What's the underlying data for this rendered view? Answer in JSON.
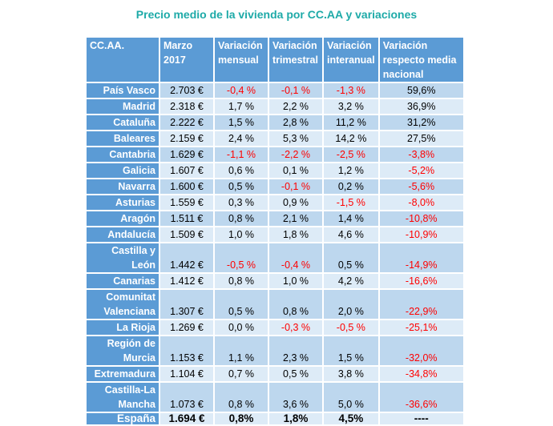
{
  "title": "Precio medio de la vivienda por CC.AA y variaciones",
  "colors": {
    "header_bg": "#5B9BD5",
    "row_dark": "#BDD7EE",
    "row_light": "#DDEBF7",
    "negative": "#FF0000",
    "title": "#1EAAA8"
  },
  "headers": [
    "CC.AA.",
    "Marzo 2017",
    "Variación mensual",
    "Variación trimestral",
    "Variación interanual",
    "Variación respecto media nacional"
  ],
  "rows": [
    [
      "País Vasco",
      "2.703 €",
      "-0,4 %",
      "-0,1 %",
      "-1,3 %",
      "59,6%"
    ],
    [
      "Madrid",
      "2.318 €",
      "1,7 %",
      "2,2 %",
      "3,2 %",
      "36,9%"
    ],
    [
      "Cataluña",
      "2.222 €",
      "1,5 %",
      "2,8 %",
      "11,2 %",
      "31,2%"
    ],
    [
      "Baleares",
      "2.159 €",
      "2,4 %",
      "5,3 %",
      "14,2 %",
      "27,5%"
    ],
    [
      "Cantabria",
      "1.629 €",
      "-1,1 %",
      "-2,2 %",
      "-2,5 %",
      "-3,8%"
    ],
    [
      "Galicia",
      "1.607 €",
      "0,6 %",
      "0,1 %",
      "1,2 %",
      "-5,2%"
    ],
    [
      "Navarra",
      "1.600 €",
      "0,5 %",
      "-0,1 %",
      "0,2 %",
      "-5,6%"
    ],
    [
      "Asturias",
      "1.559 €",
      "0,3 %",
      "0,9 %",
      "-1,5 %",
      "-8,0%"
    ],
    [
      "Aragón",
      "1.511 €",
      "0,8 %",
      "2,1 %",
      "1,4 %",
      "-10,8%"
    ],
    [
      "Andalucía",
      "1.509 €",
      "1,0 %",
      "1,8 %",
      "4,6 %",
      "-10,9%"
    ],
    [
      "Castilla y León",
      "1.442 €",
      "-0,5 %",
      "-0,4 %",
      "0,5 %",
      "-14,9%"
    ],
    [
      "Canarias",
      "1.412 €",
      "0,8 %",
      "1,0 %",
      "4,2 %",
      "-16,6%"
    ],
    [
      "Comunitat Valenciana",
      "1.307 €",
      "0,5 %",
      "0,8 %",
      "2,0 %",
      "-22,9%"
    ],
    [
      "La Rioja",
      "1.269 €",
      "0,0 %",
      "-0,3 %",
      "-0,5 %",
      "-25,1%"
    ],
    [
      "Región de Murcia",
      "1.153 €",
      "1,1 %",
      "2,3 %",
      "1,5 %",
      "-32,0%"
    ],
    [
      "Extremadura",
      "1.104 €",
      "0,7 %",
      "0,5 %",
      "3,8 %",
      "-34,8%"
    ],
    [
      "Castilla-La Mancha",
      "1.073 €",
      "0,8 %",
      "3,6 %",
      "5,0 %",
      "-36,6%"
    ]
  ],
  "total": [
    "España",
    "1.694 €",
    "0,8%",
    "1,8%",
    "4,5%",
    "----"
  ]
}
